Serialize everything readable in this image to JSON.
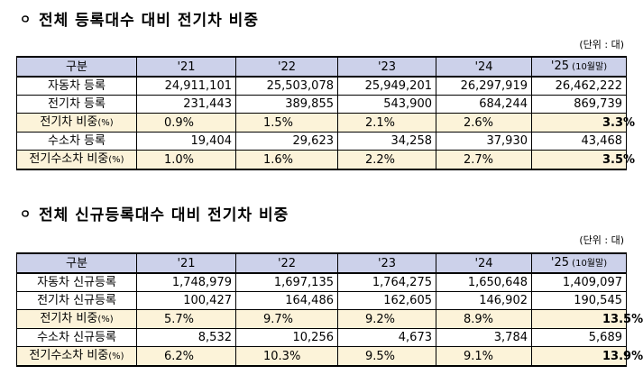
{
  "section1": {
    "bullet": "ㅇ",
    "title": "전체 등록대수 대비 전기차 비중",
    "unit": "(단위 : 대)",
    "header": [
      "구분",
      "'21",
      "'22",
      "'23",
      "'24",
      "'25"
    ],
    "header_note": "(10월말)",
    "rows": [
      {
        "label": "자동차 등록",
        "values": [
          "24,911,101",
          "25,503,078",
          "25,949,201",
          "26,297,919",
          "26,462,222"
        ],
        "type": "num"
      },
      {
        "label": "전기차 등록",
        "values": [
          "231,443",
          "389,855",
          "543,900",
          "684,244",
          "869,739"
        ],
        "type": "num"
      },
      {
        "label": "전기차 비중",
        "label_note": "(%)",
        "values": [
          "0.9%",
          "1.5%",
          "2.1%",
          "2.6%",
          "3.3%"
        ],
        "type": "ratio"
      },
      {
        "label": "수소차 등록",
        "values": [
          "19,404",
          "29,623",
          "34,258",
          "37,930",
          "43,468"
        ],
        "type": "num"
      },
      {
        "label": "전기수소차 비중",
        "label_note": "(%)",
        "values": [
          "1.0%",
          "1.6%",
          "2.2%",
          "2.7%",
          "3.5%"
        ],
        "type": "ratio"
      }
    ]
  },
  "section2": {
    "bullet": "ㅇ",
    "title": "전체 신규등록대수 대비 전기차 비중",
    "unit": "(단위 : 대)",
    "header": [
      "구분",
      "'21",
      "'22",
      "'23",
      "'24",
      "'25"
    ],
    "header_note": "(10월말)",
    "rows": [
      {
        "label": "자동차 신규등록",
        "values": [
          "1,748,979",
          "1,697,135",
          "1,764,275",
          "1,650,648",
          "1,409,097"
        ],
        "type": "num"
      },
      {
        "label": "전기차 신규등록",
        "values": [
          "100,427",
          "164,486",
          "162,605",
          "146,902",
          "190,545"
        ],
        "type": "num"
      },
      {
        "label": "전기차 비중",
        "label_note": "(%)",
        "values": [
          "5.7%",
          "9.7%",
          "9.2%",
          "8.9%",
          "13.5%"
        ],
        "type": "ratio"
      },
      {
        "label": "수소차 신규등록",
        "values": [
          "8,532",
          "10,256",
          "4,673",
          "3,784",
          "5,689"
        ],
        "type": "num"
      },
      {
        "label": "전기수소차 비중",
        "label_note": "(%)",
        "values": [
          "6.2%",
          "10.3%",
          "9.5%",
          "9.1%",
          "13.9%"
        ],
        "type": "ratio"
      }
    ]
  },
  "colors": {
    "header_bg": "#ccd1ea",
    "ratio_bg": "#fcf3d9"
  }
}
